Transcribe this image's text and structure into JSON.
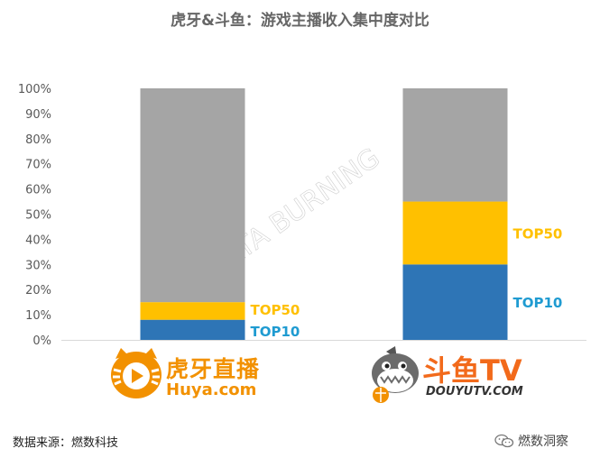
{
  "chart_data": {
    "type": "bar",
    "stacked": true,
    "title": "虎牙&斗鱼：游戏主播收入集中度对比",
    "categories": [
      "虎牙直播",
      "斗鱼TV"
    ],
    "series": [
      {
        "name": "TOP10",
        "values": [
          8,
          30
        ],
        "color": "#2e75b6"
      },
      {
        "name": "TOP50",
        "values": [
          7,
          25
        ],
        "color": "#ffc000"
      },
      {
        "name": "",
        "values": [
          85,
          45
        ],
        "color": "#a5a5a5"
      }
    ],
    "ylim": [
      0,
      100
    ],
    "yticks": [
      "0%",
      "10%",
      "20%",
      "30%",
      "40%",
      "50%",
      "60%",
      "70%",
      "80%",
      "90%",
      "100%"
    ],
    "label_colors": {
      "TOP10": "#1f9bd1",
      "TOP50": "#ffc000"
    },
    "legend": "inline-right-of-bars",
    "grid": false
  },
  "watermark": "DATA BURNING",
  "logos": {
    "huya": {
      "cn": "虎牙直播",
      "en": "Huya.com",
      "icon": "tiger-play-icon"
    },
    "douyu": {
      "cn": "斗鱼TV",
      "en": "DOUYUTV.COM",
      "icon": "shark-mascot-icon"
    }
  },
  "source": "数据来源：燃数科技",
  "wechat_account": "燃数洞察",
  "wechat_icon": "wechat-icon"
}
